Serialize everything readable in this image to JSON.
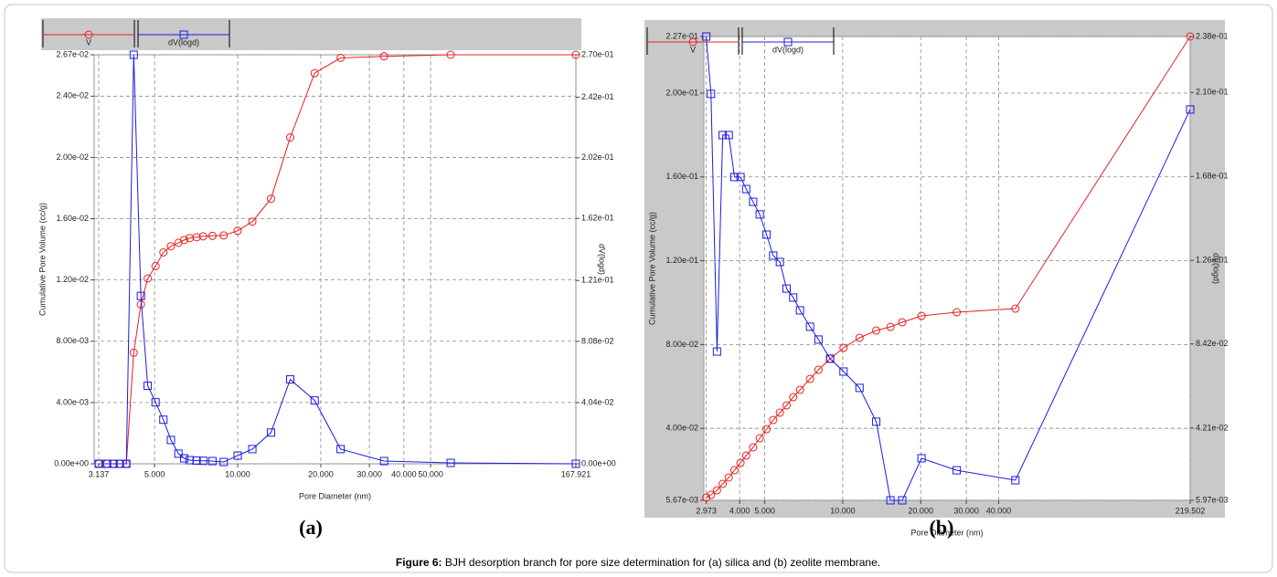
{
  "chart_data": [
    {
      "type": "line",
      "panel_label": "(a)",
      "xlabel": "Pore Diameter (nm)",
      "ylabel": "Cumulative Pore Volume (cc/g)",
      "y2label": "dV(logd)",
      "xscale": "log",
      "grid": true,
      "x": [
        3.137,
        3.36,
        3.55,
        3.74,
        3.95,
        4.2,
        4.46,
        4.72,
        5.04,
        5.38,
        5.73,
        6.1,
        6.4,
        6.7,
        7.1,
        7.5,
        8.1,
        8.9,
        10.0,
        11.3,
        13.2,
        15.5,
        19.0,
        23.6,
        33.9,
        59.1,
        167.921
      ],
      "series": [
        {
          "name": "V",
          "color": "#e8201e",
          "marker": "circle",
          "values": [
            0,
            0,
            0,
            0,
            0,
            0.00725,
            0.0104,
            0.0121,
            0.0129,
            0.0138,
            0.0142,
            0.01443,
            0.01461,
            0.01473,
            0.01479,
            0.01485,
            0.01488,
            0.01491,
            0.01521,
            0.01581,
            0.0173,
            0.0213,
            0.0255,
            0.0265,
            0.0266,
            0.0267,
            0.0267
          ]
        },
        {
          "name": "dV(logd)",
          "color": "#1c1ce0",
          "marker": "square",
          "axis": "y2",
          "values": [
            0,
            0,
            0,
            0,
            0,
            0.27,
            0.1108,
            0.0515,
            0.0406,
            0.0291,
            0.0157,
            0.0067,
            0.0036,
            0.0024,
            0.0021,
            0.002,
            0.0018,
            0.0012,
            0.0054,
            0.0097,
            0.0206,
            0.0557,
            0.0418,
            0.0097,
            0.0018,
            0.0006,
            0
          ]
        }
      ],
      "xlim": [
        3.02,
        167.921
      ],
      "xticks": [
        3.137,
        {
          "value": 5,
          "label": "5.000"
        },
        {
          "value": 10,
          "label": "10.000"
        },
        {
          "value": 20,
          "label": "20.000"
        },
        {
          "value": 30,
          "label": "30.000"
        },
        {
          "value": 40,
          "label": "40.000"
        },
        {
          "value": 50,
          "label": "50.000"
        },
        167.921
      ],
      "ylim": [
        0,
        0.0267
      ],
      "yticks": [
        {
          "value": 0,
          "label": "0.00e+00"
        },
        {
          "value": 0.004,
          "label": "4.00e-03"
        },
        {
          "value": 0.008,
          "label": "8.00e-03"
        },
        {
          "value": 0.012,
          "label": "1.20e-02"
        },
        {
          "value": 0.016,
          "label": "1.60e-02"
        },
        {
          "value": 0.02,
          "label": "2.00e-02"
        },
        {
          "value": 0.024,
          "label": "2.40e-02"
        },
        {
          "value": 0.0267,
          "label": "2.67e-02"
        }
      ],
      "y2lim": [
        0,
        0.27
      ],
      "y2ticks": [
        {
          "value": 0,
          "label": "0.00e+00"
        },
        {
          "value": 0.0404,
          "label": "4.04e-02"
        },
        {
          "value": 0.0808,
          "label": "8.08e-02"
        },
        {
          "value": 0.121,
          "label": "1.21e-01"
        },
        {
          "value": 0.162,
          "label": "1.62e-01"
        },
        {
          "value": 0.202,
          "label": "2.02e-01"
        },
        {
          "value": 0.242,
          "label": "2.42e-01"
        },
        {
          "value": 0.27,
          "label": "2.70e-01"
        }
      ]
    },
    {
      "type": "line",
      "panel_label": "(b)",
      "xlabel": "Pore Diameter (nm)",
      "ylabel": "Cumulative Pore Volume (cc/g)",
      "y2label": "dV(logd)",
      "xscale": "log",
      "grid": true,
      "x": [
        2.973,
        3.1,
        3.27,
        3.44,
        3.63,
        3.82,
        4.03,
        4.24,
        4.51,
        4.78,
        5.08,
        5.39,
        5.72,
        6.07,
        6.44,
        6.84,
        7.48,
        8.06,
        8.94,
        10.07,
        11.61,
        13.47,
        15.29,
        16.97,
        20.15,
        27.55,
        46.42,
        219.502
      ],
      "series": [
        {
          "name": "V",
          "color": "#e8201e",
          "marker": "circle",
          "values": [
            0.00698,
            0.00828,
            0.01046,
            0.01351,
            0.01656,
            0.02004,
            0.02353,
            0.02701,
            0.03094,
            0.03529,
            0.03965,
            0.044,
            0.04749,
            0.05097,
            0.05489,
            0.05838,
            0.0636,
            0.06796,
            0.07319,
            0.07842,
            0.08321,
            0.08669,
            0.08843,
            0.09061,
            0.09366,
            0.09541,
            0.09715,
            0.227
          ]
        },
        {
          "name": "dV(logd)",
          "color": "#1c1ce0",
          "marker": "square",
          "axis": "y2",
          "values": [
            0.238,
            0.2093,
            0.0804,
            0.1887,
            0.1887,
            0.1677,
            0.1677,
            0.1617,
            0.1553,
            0.149,
            0.1389,
            0.1284,
            0.1252,
            0.1119,
            0.1074,
            0.101,
            0.0928,
            0.0864,
            0.0768,
            0.0704,
            0.0622,
            0.0453,
            0.00597,
            0.00597,
            0.027,
            0.021,
            0.016,
            0.2015
          ]
        }
      ],
      "xlim": [
        2.91,
        219.502
      ],
      "xticks": [
        2.973,
        {
          "value": 4,
          "label": "4.000"
        },
        {
          "value": 5,
          "label": "5.000"
        },
        {
          "value": 10,
          "label": "10.000"
        },
        {
          "value": 20,
          "label": "20.000"
        },
        {
          "value": 30,
          "label": "30.000"
        },
        {
          "value": 40,
          "label": "40.000"
        },
        219.502
      ],
      "ylim": [
        0.00567,
        0.227
      ],
      "yticks": [
        {
          "value": 0.00567,
          "label": "5.67e-03"
        },
        {
          "value": 0.04,
          "label": "4.00e-02"
        },
        {
          "value": 0.08,
          "label": "8.00e-02"
        },
        {
          "value": 0.12,
          "label": "1.20e-01"
        },
        {
          "value": 0.16,
          "label": "1.60e-01"
        },
        {
          "value": 0.2,
          "label": "2.00e-01"
        },
        {
          "value": 0.227,
          "label": "2.27e-01"
        }
      ],
      "y2lim": [
        0.00597,
        0.238
      ],
      "y2ticks": [
        {
          "value": 0.00597,
          "label": "5.97e-03"
        },
        {
          "value": 0.0421,
          "label": "4.21e-02"
        },
        {
          "value": 0.0842,
          "label": "8.42e-02"
        },
        {
          "value": 0.126,
          "label": "1.26e-01"
        },
        {
          "value": 0.168,
          "label": "1.68e-01"
        },
        {
          "value": 0.21,
          "label": "2.10e-01"
        },
        {
          "value": 0.238,
          "label": "2.38e-01"
        }
      ]
    }
  ],
  "caption": {
    "label": "Figure 6:",
    "text": "BJH desorption branch for pore size determination for (a) silica and (b) zeolite membrane."
  }
}
